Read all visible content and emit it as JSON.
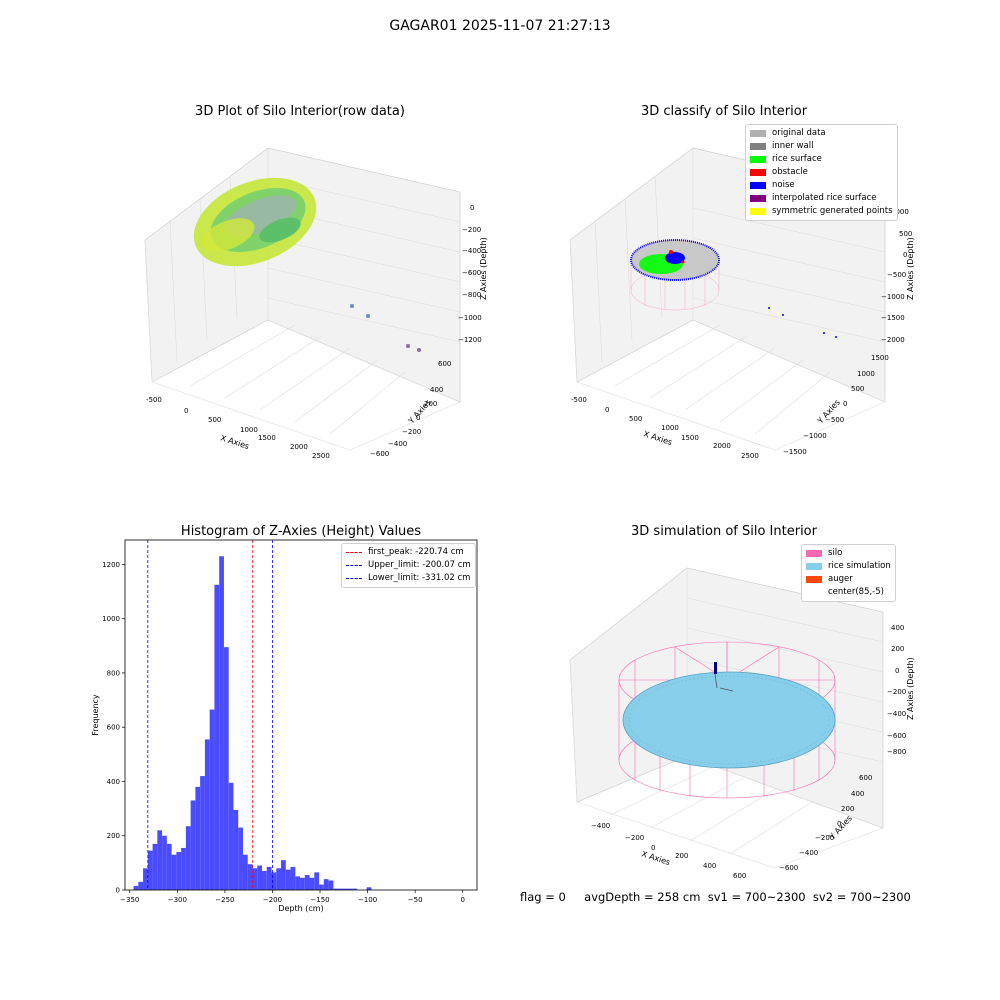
{
  "page_title": "GAGAR01 2025-11-07 21:27:13",
  "colors": {
    "rice_surface": "#00ff00",
    "noise": "#0000ff",
    "obstacle": "#ff0000",
    "inner_wall": "#808080",
    "original": "#b0b0b0",
    "interp": "#800080",
    "symmetric": "#ffff00",
    "silo": "#ff69b4",
    "rice_sim": "#87ceeb",
    "auger": "#ff4500",
    "hist_bar": "#4b4bff"
  },
  "panels": {
    "raw": {
      "title": "3D Plot of Silo Interior(row data)",
      "xlabel": "X Axies",
      "ylabel": "Y Axies",
      "zlabel": "Z Axies (Depth)",
      "x_ticks": [
        "-500",
        "0",
        "500",
        "1000",
        "1500",
        "2000",
        "2500"
      ],
      "y_ticks": [
        "600",
        "400",
        "200",
        "0",
        "−200",
        "−400",
        "−600"
      ],
      "z_ticks": [
        "0",
        "−200",
        "−400",
        "−600",
        "−800",
        "−1000",
        "−1200"
      ]
    },
    "classify": {
      "title": "3D classify of Silo Interior",
      "xlabel": "X Axies",
      "ylabel": "Y Axies",
      "zlabel": "Z Axies (Depth)",
      "x_ticks": [
        "-500",
        "0",
        "500",
        "1000",
        "1500",
        "2000",
        "2500"
      ],
      "y_ticks": [
        "1500",
        "1000",
        "500",
        "0",
        "−500",
        "−1000",
        "−1500"
      ],
      "z_ticks": [
        "1000",
        "500",
        "0",
        "−500",
        "−1000",
        "−1500",
        "−2000"
      ],
      "legend": [
        {
          "label": "original data",
          "color": "#b0b0b0"
        },
        {
          "label": "inner wall",
          "color": "#808080"
        },
        {
          "label": "rice surface",
          "color": "#00ff00"
        },
        {
          "label": "obstacle",
          "color": "#ff0000"
        },
        {
          "label": "noise",
          "color": "#0000ff"
        },
        {
          "label": "interpolated rice surface",
          "color": "#800080"
        },
        {
          "label": "symmetric generated points",
          "color": "#ffff00"
        }
      ]
    },
    "simulation": {
      "title": "3D simulation of Silo Interior",
      "xlabel": "X Axies",
      "ylabel": "Y Axies",
      "zlabel": "Z Axies (Depth)",
      "x_ticks": [
        "−400",
        "−200",
        "0",
        "200",
        "400",
        "600"
      ],
      "y_ticks": [
        "600",
        "400",
        "200",
        "0",
        "−200",
        "−400",
        "−600"
      ],
      "z_ticks": [
        "400",
        "200",
        "0",
        "−200",
        "−400",
        "−600",
        "−800"
      ],
      "legend": [
        {
          "label": "silo",
          "color": "#ff69b4"
        },
        {
          "label": "rice simulation",
          "color": "#87ceeb"
        },
        {
          "label": "auger",
          "color": "#ff4500"
        },
        {
          "label": "center(85,-5)",
          "color": ""
        }
      ]
    }
  },
  "chart_data": [
    {
      "type": "bar",
      "title": "Histogram of Z-Axies (Height) Values",
      "xlabel": "Depth (cm)",
      "ylabel": "Frequency",
      "xlim": [
        -355,
        15
      ],
      "ylim": [
        0,
        1290
      ],
      "x_ticks": [
        -350,
        -300,
        -250,
        -200,
        -150,
        -100,
        -50,
        0
      ],
      "y_ticks": [
        0,
        200,
        400,
        600,
        800,
        1000,
        1200
      ],
      "bin_start": -346,
      "bin_width": 5,
      "values": [
        15,
        30,
        80,
        145,
        170,
        220,
        200,
        170,
        130,
        140,
        155,
        235,
        330,
        380,
        420,
        555,
        665,
        1125,
        1230,
        895,
        395,
        295,
        230,
        130,
        95,
        80,
        90,
        70,
        85,
        65,
        80,
        110,
        75,
        85,
        50,
        45,
        55,
        45,
        65,
        20,
        40,
        35,
        5,
        5,
        5,
        5,
        5,
        0,
        0,
        10
      ],
      "vlines": [
        {
          "label": "first_peak: -220.74 cm",
          "x": -220.74,
          "color": "#ff0000"
        },
        {
          "label": "Upper_limit: -200.07 cm",
          "x": -200.07,
          "color": "#0000ff"
        },
        {
          "label": "Lower_limit: -331.02 cm",
          "x": -331.02,
          "color": "#0000ff"
        }
      ]
    }
  ],
  "footer": {
    "flag": "flag = 0",
    "stats": "avgDepth = 258 cm  sv1 = 700~2300  sv2 = 700~2300"
  }
}
